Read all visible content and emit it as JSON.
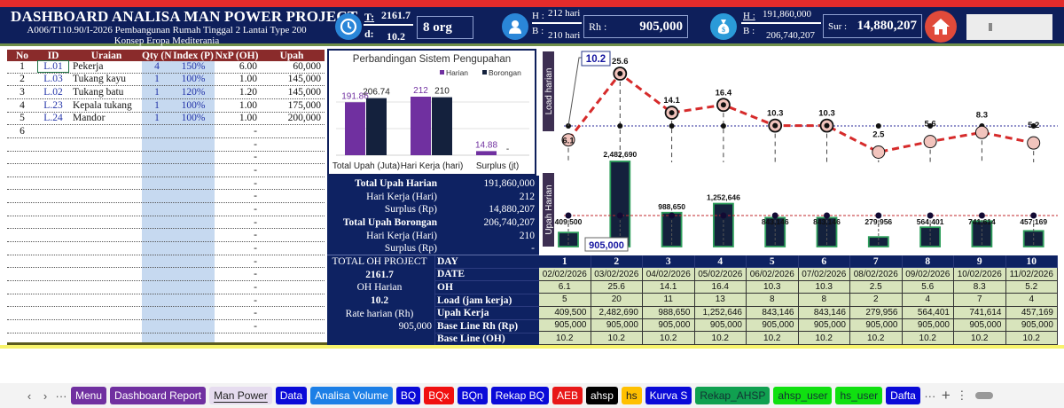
{
  "header": {
    "title": "DASHBOARD ANALISA MAN POWER PROJECT",
    "subtitle": "A006/T110.90/I-2026 Pembangunan Rumah Tinggal 2 Lantai Type 200 Konsep Eropa Mediterania",
    "t_label": "T:",
    "t_value": "2161.7",
    "d_label": "d:",
    "d_value": "10.2",
    "workers": "8 org",
    "h_days": "212 hari",
    "b_days": "210 hari",
    "h_label": "H :",
    "b_label": "B :",
    "rh_label": "Rh :",
    "rh_value": "905,000",
    "h_cost": "191,860,000",
    "b_cost": "206,740,207",
    "sur_label": "Sur :",
    "sur_value": "14,880,207",
    "icons": [
      "clock-icon",
      "worker-icon",
      "money-bag-icon",
      "home-icon"
    ]
  },
  "labor_table": {
    "headers": [
      "No",
      "ID",
      "Uraian",
      "Qty (N)",
      "Index (P)",
      "NxP (OH)",
      "Upah"
    ],
    "rows": [
      {
        "no": "1",
        "id": "L.01",
        "uraian": "Pekerja",
        "qty": "4",
        "index": "150%",
        "nxp": "6.00",
        "upah": "60,000"
      },
      {
        "no": "2",
        "id": "L.03",
        "uraian": "Tukang kayu",
        "qty": "1",
        "index": "100%",
        "nxp": "1.00",
        "upah": "145,000"
      },
      {
        "no": "3",
        "id": "L.02",
        "uraian": "Tukang batu",
        "qty": "1",
        "index": "120%",
        "nxp": "1.20",
        "upah": "145,000"
      },
      {
        "no": "4",
        "id": "L.23",
        "uraian": "Kepala tukang",
        "qty": "1",
        "index": "100%",
        "nxp": "1.00",
        "upah": "175,000"
      },
      {
        "no": "5",
        "id": "L.24",
        "uraian": "Mandor",
        "qty": "1",
        "index": "100%",
        "nxp": "1.00",
        "upah": "200,000"
      },
      {
        "no": "6",
        "id": "",
        "uraian": "",
        "qty": "",
        "index": "",
        "nxp": "-",
        "upah": ""
      },
      {
        "no": "",
        "id": "",
        "uraian": "",
        "qty": "",
        "index": "",
        "nxp": "-",
        "upah": ""
      },
      {
        "no": "",
        "id": "",
        "uraian": "",
        "qty": "",
        "index": "",
        "nxp": "-",
        "upah": ""
      },
      {
        "no": "",
        "id": "",
        "uraian": "",
        "qty": "",
        "index": "",
        "nxp": "-",
        "upah": ""
      },
      {
        "no": "",
        "id": "",
        "uraian": "",
        "qty": "",
        "index": "",
        "nxp": "-",
        "upah": ""
      },
      {
        "no": "",
        "id": "",
        "uraian": "",
        "qty": "",
        "index": "",
        "nxp": "-",
        "upah": ""
      },
      {
        "no": "",
        "id": "",
        "uraian": "",
        "qty": "",
        "index": "",
        "nxp": "-",
        "upah": ""
      },
      {
        "no": "",
        "id": "",
        "uraian": "",
        "qty": "",
        "index": "",
        "nxp": "-",
        "upah": ""
      },
      {
        "no": "",
        "id": "",
        "uraian": "",
        "qty": "",
        "index": "",
        "nxp": "-",
        "upah": ""
      },
      {
        "no": "",
        "id": "",
        "uraian": "",
        "qty": "",
        "index": "",
        "nxp": "-",
        "upah": ""
      },
      {
        "no": "",
        "id": "",
        "uraian": "",
        "qty": "",
        "index": "",
        "nxp": "-",
        "upah": ""
      },
      {
        "no": "",
        "id": "",
        "uraian": "",
        "qty": "",
        "index": "",
        "nxp": "-",
        "upah": ""
      },
      {
        "no": "",
        "id": "",
        "uraian": "",
        "qty": "",
        "index": "",
        "nxp": "-",
        "upah": ""
      },
      {
        "no": "",
        "id": "",
        "uraian": "",
        "qty": "",
        "index": "",
        "nxp": "-",
        "upah": ""
      },
      {
        "no": "",
        "id": "",
        "uraian": "",
        "qty": "",
        "index": "",
        "nxp": "-",
        "upah": ""
      },
      {
        "no": "",
        "id": "",
        "uraian": "",
        "qty": "",
        "index": "",
        "nxp": "-",
        "upah": ""
      }
    ]
  },
  "summary": {
    "rows": [
      {
        "label": "Total Upah Harian",
        "value": "191,860,000",
        "bold": true
      },
      {
        "label": "Hari Kerja (Hari)",
        "value": "212",
        "bold": false
      },
      {
        "label": "Surplus (Rp)",
        "value": "14,880,207",
        "bold": false
      },
      {
        "label": "Total Upah Borongan",
        "value": "206,740,207",
        "bold": true
      },
      {
        "label": "Hari Kerja (Hari)",
        "value": "210",
        "bold": false
      },
      {
        "label": "Surplus (Rp)",
        "value": "-",
        "bold": false
      }
    ],
    "oh_block": [
      {
        "text": "TOTAL OH PROJECT",
        "bold": false,
        "align": "center"
      },
      {
        "text": "2161.7",
        "bold": true,
        "align": "center"
      },
      {
        "text": "OH Harian",
        "bold": false,
        "align": "center"
      },
      {
        "text": "10.2",
        "bold": true,
        "align": "center"
      },
      {
        "text": "Rate harian (Rh)",
        "bold": false,
        "align": "center"
      },
      {
        "text": "905,000",
        "bold": false,
        "align": "right"
      }
    ],
    "row_labels": [
      "DAY",
      "DATE",
      "OH",
      "Load (jam kerja)",
      "Upah Kerja",
      "Base Line Rh (Rp)",
      "Base Line (OH)"
    ]
  },
  "schedule": {
    "day": [
      "1",
      "2",
      "3",
      "4",
      "5",
      "6",
      "7",
      "8",
      "9",
      "10"
    ],
    "date": [
      "02/02/2026",
      "03/02/2026",
      "04/02/2026",
      "05/02/2026",
      "06/02/2026",
      "07/02/2026",
      "08/02/2026",
      "09/02/2026",
      "10/02/2026",
      "11/02/2026"
    ],
    "oh": [
      "6.1",
      "25.6",
      "14.1",
      "16.4",
      "10.3",
      "10.3",
      "2.5",
      "5.6",
      "8.3",
      "5.2"
    ],
    "load": [
      "5",
      "20",
      "11",
      "13",
      "8",
      "8",
      "2",
      "4",
      "7",
      "4"
    ],
    "upah": [
      "409,500",
      "2,482,690",
      "988,650",
      "1,252,646",
      "843,146",
      "843,146",
      "279,956",
      "564,401",
      "741,614",
      "457,169"
    ],
    "baseline_rh": [
      "905,000",
      "905,000",
      "905,000",
      "905,000",
      "905,000",
      "905,000",
      "905,000",
      "905,000",
      "905,000",
      "905,000"
    ],
    "baseline_oh": [
      "10.2",
      "10.2",
      "10.2",
      "10.2",
      "10.2",
      "10.2",
      "10.2",
      "10.2",
      "10.2",
      "10.2"
    ]
  },
  "chart_data": [
    {
      "type": "bar",
      "title": "Perbandingan Sistem Pengupahan",
      "categories": [
        "Total Upah (Juta)",
        "Hari Kerja (hari)",
        "Surplus (jt)"
      ],
      "series": [
        {
          "name": "Harian",
          "values": [
            191.86,
            212,
            14.88
          ],
          "labels": [
            "191.86",
            "212",
            "14.88"
          ],
          "color": "#7030a0"
        },
        {
          "name": "Borongan",
          "values": [
            206.74,
            210,
            0
          ],
          "labels": [
            "206.74",
            "210",
            "-"
          ],
          "color": "#14213d"
        }
      ],
      "legend": "top-right",
      "grid": true
    },
    {
      "type": "line",
      "ylabel": "Load harian",
      "x": [
        1,
        2,
        3,
        4,
        5,
        6,
        7,
        8,
        9,
        10
      ],
      "values": [
        6.1,
        25.6,
        14.1,
        16.4,
        10.3,
        10.3,
        2.5,
        5.6,
        8.3,
        5.2
      ],
      "labels": [
        "6.1",
        "25.6",
        "14.1",
        "16.4",
        "10.3",
        "10.3",
        "2.5",
        "5.6",
        "8.3",
        "5.2"
      ],
      "baseline": 10.2,
      "baseline_label": "10.2",
      "line_color": "#d62b2b",
      "baseline_color": "#2a2a9a"
    },
    {
      "type": "bar",
      "ylabel": "Upah Harian",
      "x": [
        1,
        2,
        3,
        4,
        5,
        6,
        7,
        8,
        9,
        10
      ],
      "values": [
        409500,
        2482690,
        988650,
        1252646,
        843146,
        843146,
        279956,
        564401,
        741614,
        457169
      ],
      "labels": [
        "409,500",
        "2,482,690",
        "988,650",
        "1,252,646",
        "843,146",
        "843,146",
        "279,956",
        "564,401",
        "741,614",
        "457,169"
      ],
      "baseline": 905000,
      "baseline_label": "905,000",
      "bar_color": "#14213d",
      "bar_border": "#2e9e5b",
      "baseline_color": "#c0282d"
    }
  ],
  "tabs": [
    {
      "label": "Menu",
      "bg": "#7030a0",
      "fg": "#fff"
    },
    {
      "label": "Dashboard Report",
      "bg": "#7030a0",
      "fg": "#fff"
    },
    {
      "label": "Man Power",
      "bg": "#e6dcef",
      "fg": "#222",
      "active": true
    },
    {
      "label": "Data",
      "bg": "#0a0ad8",
      "fg": "#fff"
    },
    {
      "label": "Analisa Volume",
      "bg": "#1c7fe6",
      "fg": "#fff"
    },
    {
      "label": "BQ",
      "bg": "#0a0ad8",
      "fg": "#fff"
    },
    {
      "label": "BQx",
      "bg": "#f01010",
      "fg": "#fff"
    },
    {
      "label": "BQn",
      "bg": "#0a0ad8",
      "fg": "#fff"
    },
    {
      "label": "Rekap BQ",
      "bg": "#0a0ad8",
      "fg": "#fff"
    },
    {
      "label": "AEB",
      "bg": "#e81818",
      "fg": "#fff"
    },
    {
      "label": "ahsp",
      "bg": "#000",
      "fg": "#fff"
    },
    {
      "label": "hs",
      "bg": "#ffc000",
      "fg": "#222"
    },
    {
      "label": "Kurva S",
      "bg": "#0a0ad8",
      "fg": "#fff"
    },
    {
      "label": "Rekap_AHSP",
      "bg": "#10a050",
      "fg": "#133"
    },
    {
      "label": "ahsp_user",
      "bg": "#10e010",
      "fg": "#133"
    },
    {
      "label": "hs_user",
      "bg": "#10e010",
      "fg": "#133"
    },
    {
      "label": "Dafta",
      "bg": "#0a0ad8",
      "fg": "#fff"
    }
  ],
  "tabnav": {
    "prev": "‹",
    "next": "›",
    "more": "···",
    "add": "+",
    "menu": "⋮"
  }
}
